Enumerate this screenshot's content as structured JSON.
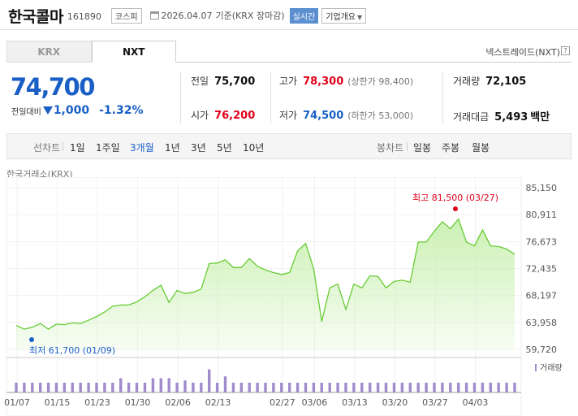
{
  "header": {
    "name": "한국콜마",
    "code": "161890",
    "market": "코스피",
    "date": "2026.04.07",
    "basis": "기준(KRX 장마감)",
    "realtime": "실시간",
    "company_button": "기업개요"
  },
  "tabs": [
    {
      "label": "KRX",
      "active": false
    },
    {
      "label": "NXT",
      "active": true
    }
  ],
  "nxt_label": "넥스트레이드(NXT)",
  "price": {
    "current": "74,700",
    "change_label": "전일대비",
    "change_amount": "1,000",
    "change_pct": "-1.32%",
    "direction": "down"
  },
  "quotes": {
    "prev": {
      "label": "전일",
      "value": "75,700"
    },
    "open": {
      "label": "시가",
      "value": "76,200"
    },
    "high": {
      "label": "고가",
      "value": "78,300",
      "sub": "(상한가 98,400)"
    },
    "low": {
      "label": "저가",
      "value": "74,500",
      "sub": "(하한가 53,000)"
    },
    "volume": {
      "label": "거래량",
      "value": "72,105"
    },
    "amount": {
      "label": "거래대금",
      "value": "5,493",
      "unit": "백만"
    }
  },
  "ranges": {
    "line_label": "선차트",
    "line": [
      "1일",
      "1주일",
      "3개월",
      "1년",
      "3년",
      "5년",
      "10년"
    ],
    "selected": "3개월",
    "candle_label": "봉차트",
    "candle": [
      "일봉",
      "주봉",
      "월봉"
    ]
  },
  "chart_source": "한국거래소(KRX)",
  "colors": {
    "accent": "#1a5fc5",
    "up": "#e0001a",
    "line": "#66cc33",
    "fill": "#c9f0b0",
    "volume": "#a08ccc"
  },
  "chart_data": {
    "type": "area",
    "y_ticks": [
      "85,150",
      "80,911",
      "76,673",
      "72,435",
      "68,197",
      "63,958",
      "59,720"
    ],
    "ylim": [
      59720,
      85150
    ],
    "x_ticks": [
      "01/07",
      "01/15",
      "01/23",
      "01/30",
      "02/06",
      "02/13",
      "02/27",
      "03/06",
      "03/13",
      "03/20",
      "03/27",
      "04/03"
    ],
    "values": [
      63500,
      62900,
      63200,
      63800,
      62900,
      63700,
      63600,
      63900,
      63800,
      64300,
      64900,
      65600,
      66500,
      66700,
      66700,
      67200,
      68000,
      69000,
      69800,
      67100,
      69000,
      68500,
      68700,
      69200,
      73200,
      73300,
      73800,
      72600,
      72600,
      74000,
      72800,
      72200,
      71800,
      71500,
      71800,
      75200,
      76400,
      72400,
      64100,
      69400,
      70000,
      66000,
      70000,
      69400,
      71300,
      71200,
      69400,
      70400,
      70600,
      70300,
      76600,
      76600,
      78300,
      79800,
      78700,
      80200,
      76600,
      76000,
      78500,
      76000,
      75900,
      75500,
      74700
    ],
    "volume_label": "거래량",
    "volumes": [
      0.26,
      0.26,
      0.26,
      0.26,
      0.26,
      0.26,
      0.26,
      0.26,
      0.26,
      0.26,
      0.26,
      0.26,
      0.26,
      0.38,
      0.26,
      0.26,
      0.26,
      0.38,
      0.38,
      0.38,
      0.26,
      0.32,
      0.26,
      0.26,
      0.62,
      0.26,
      0.43,
      0.26,
      0.26,
      0.26,
      0.26,
      0.26,
      0.26,
      0.26,
      0.26,
      0.26,
      0.26,
      0.26,
      0.26,
      0.26,
      0.26,
      0.26,
      0.26,
      0.26,
      0.26,
      0.26,
      0.26,
      0.26,
      0.26,
      0.26,
      0.26,
      0.26,
      0.26,
      0.26,
      0.26,
      0.26,
      0.26,
      0.26,
      0.26,
      0.26,
      0.26,
      0.26,
      0.26
    ],
    "high_label": "최고 81,500 (03/27)",
    "low_label": "최저 61,700 (01/09)"
  }
}
